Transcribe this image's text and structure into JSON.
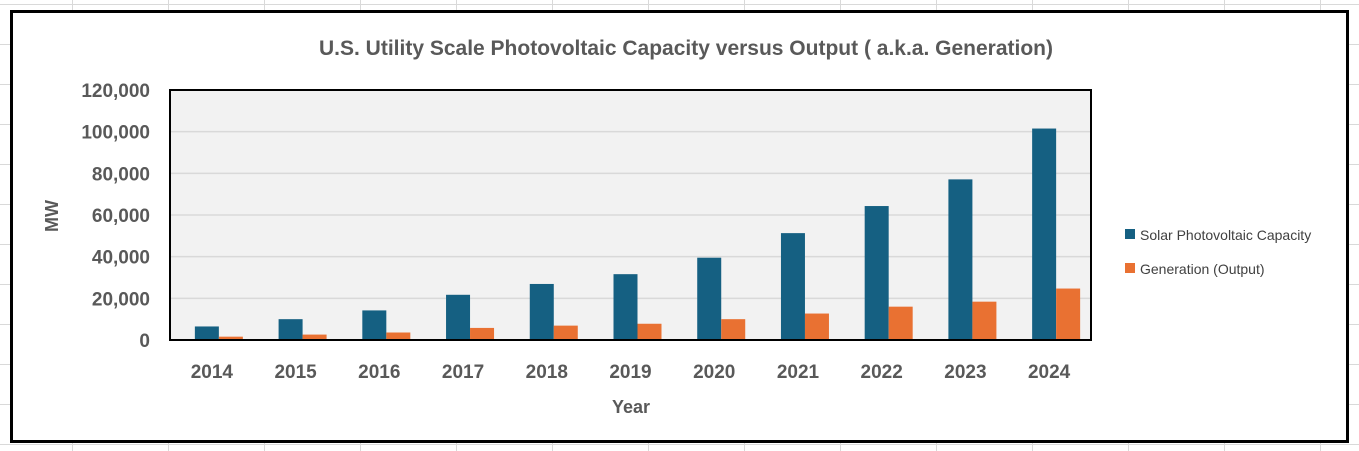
{
  "chart_data": {
    "type": "bar",
    "title": "U.S. Utility Scale Photovoltaic Capacity versus Output ( a.k.a. Generation)",
    "xlabel": "Year",
    "ylabel": "MW",
    "ylim": [
      0,
      120000
    ],
    "yticks": [
      0,
      20000,
      40000,
      60000,
      80000,
      100000,
      120000
    ],
    "ytick_labels": [
      "0",
      "20,000",
      "40,000",
      "60,000",
      "80,000",
      "100,000",
      "120,000"
    ],
    "categories": [
      "2014",
      "2015",
      "2016",
      "2017",
      "2018",
      "2019",
      "2020",
      "2021",
      "2022",
      "2023",
      "2024"
    ],
    "series": [
      {
        "name": "Solar Photovoltaic Capacity",
        "color": "#156082",
        "values": [
          6500,
          10000,
          14200,
          21700,
          26900,
          31600,
          39500,
          51300,
          64300,
          77100,
          101500
        ]
      },
      {
        "name": "Generation (Output)",
        "color": "#E97132",
        "values": [
          1600,
          2600,
          3600,
          5800,
          6900,
          7800,
          10000,
          12700,
          16000,
          18400,
          24700
        ]
      }
    ],
    "grid": true,
    "legend": "right"
  }
}
